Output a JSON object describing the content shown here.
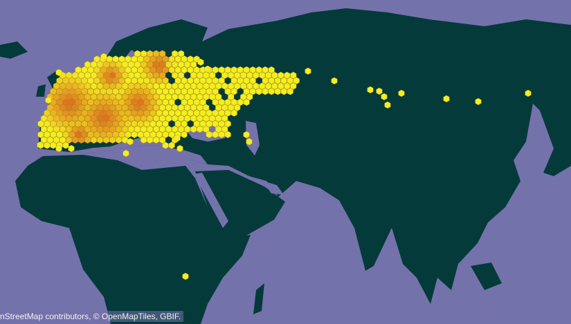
{
  "map": {
    "attribution": "nStreetMap contributors, © OpenMapTiles, GBIF.",
    "colors": {
      "ocean": "#7472aa",
      "land": "#053a3b",
      "density_low": "#f4ee1e",
      "density_high": "#e0641e"
    }
  }
}
